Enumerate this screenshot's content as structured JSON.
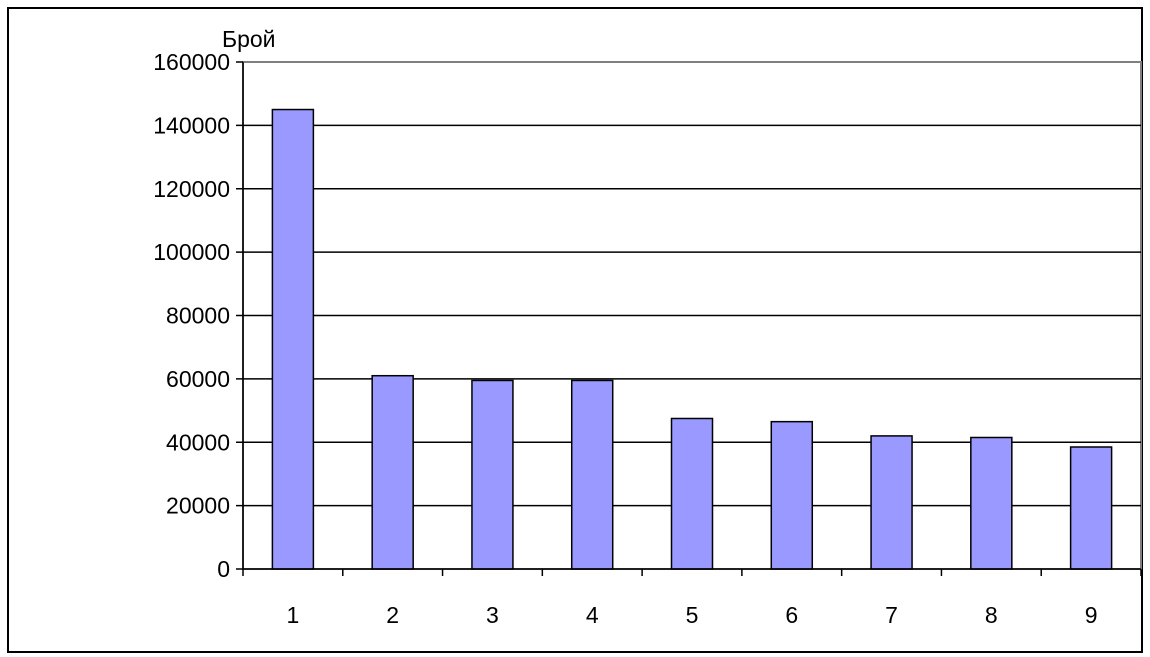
{
  "chart_data": {
    "type": "bar",
    "title": "",
    "xlabel": "",
    "ylabel": "Брой",
    "categories": [
      "1",
      "2",
      "3",
      "4",
      "5",
      "6",
      "7",
      "8",
      "9"
    ],
    "values": [
      145000,
      61000,
      59500,
      59500,
      47500,
      46500,
      42000,
      41500,
      38500
    ],
    "ylim": [
      0,
      160000
    ],
    "yticks": [
      "0",
      "20000",
      "40000",
      "60000",
      "80000",
      "100000",
      "120000",
      "140000",
      "160000"
    ],
    "grid": true,
    "legend": "none",
    "bar_color": "#9999ff",
    "plot_border_color": "#808080"
  }
}
